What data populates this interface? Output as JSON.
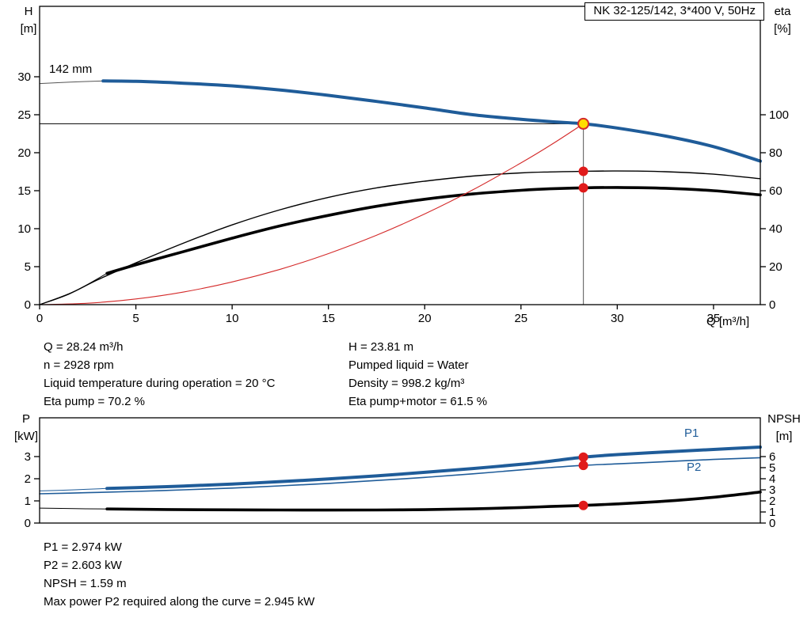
{
  "title_box": "NK 32-125/142, 3*400 V, 50Hz",
  "labels": {
    "h_axis": [
      "H",
      "[m]"
    ],
    "eta_axis": [
      "eta",
      "[%]"
    ],
    "q_axis": "Q [m³/h]",
    "p_axis": [
      "P",
      "[kW]"
    ],
    "npsh_axis": [
      "NPSH",
      "[m]"
    ],
    "impeller": "142 mm",
    "p1": "P1",
    "p2": "P2"
  },
  "info": {
    "left": [
      "Q = 28.24 m³/h",
      "n = 2928 rpm",
      "Liquid temperature during operation = 20 °C",
      "Eta pump = 70.2 %"
    ],
    "right": [
      "H = 23.81 m",
      "Pumped liquid = Water",
      "Density = 998.2 kg/m³",
      "Eta pump+motor = 61.5 %"
    ]
  },
  "results": [
    "P1 = 2.974 kW",
    "P2 = 2.603 kW",
    "NPSH = 1.59 m",
    "Max power P2 required along the curve = 2.945 kW"
  ],
  "colors": {
    "curve_blue": "#1f5c99",
    "curve_black": "#000000",
    "system_red": "#d42a2a",
    "duty_yellow": "#ffdd00",
    "marker_red": "#e01b1b"
  },
  "chart_data": [
    {
      "type": "line",
      "name": "hq-eta",
      "title": "NK 32-125/142, 3*400 V, 50Hz",
      "xlabel": "Q [m³/h]",
      "ylabel_left": "H [m]",
      "ylabel_right": "eta [%]",
      "xlim": [
        0,
        37.43
      ],
      "ylim_left": [
        0,
        39.27
      ],
      "ylim_right": [
        0,
        157.1
      ],
      "x_ticks": [
        0,
        5,
        10,
        15,
        20,
        25,
        30,
        35
      ],
      "y_ticks_left": [
        0,
        5,
        10,
        15,
        20,
        25,
        30
      ],
      "y_ticks_right": [
        0,
        20,
        40,
        60,
        80,
        100
      ],
      "duty_point": {
        "q": 28.24,
        "h": 23.81,
        "eta_pump": 70.2,
        "eta_pump_motor": 61.5,
        "impeller": "142 mm"
      },
      "series": [
        {
          "name": "head-142mm-leadin",
          "axis": "left",
          "color": "#555555",
          "width": 1,
          "points": [
            [
              0,
              29.1
            ],
            [
              1.6,
              29.3
            ],
            [
              3.3,
              29.45
            ]
          ]
        },
        {
          "name": "head-142mm",
          "axis": "left",
          "color": "#1f5c99",
          "width": 4,
          "points": [
            [
              3.3,
              29.45
            ],
            [
              5,
              29.4
            ],
            [
              7.5,
              29.15
            ],
            [
              10,
              28.8
            ],
            [
              12.5,
              28.25
            ],
            [
              15,
              27.55
            ],
            [
              17.5,
              26.75
            ],
            [
              20,
              25.9
            ],
            [
              22.5,
              25.0
            ],
            [
              25,
              24.4
            ],
            [
              26.5,
              24.1
            ],
            [
              28.24,
              23.81
            ],
            [
              30,
              23.25
            ],
            [
              32.5,
              22.2
            ],
            [
              35,
              20.8
            ],
            [
              37.43,
              18.9
            ]
          ]
        },
        {
          "name": "eta-pump",
          "axis": "right",
          "color": "#000000",
          "width": 1.4,
          "points": [
            [
              0,
              0
            ],
            [
              1.5,
              5.5
            ],
            [
              3,
              13
            ],
            [
              5,
              22
            ],
            [
              7.5,
              32.5
            ],
            [
              10,
              42
            ],
            [
              12.5,
              50
            ],
            [
              15,
              56.5
            ],
            [
              17.5,
              61.5
            ],
            [
              20,
              65
            ],
            [
              22.5,
              67.7
            ],
            [
              25,
              69.4
            ],
            [
              26.5,
              69.9
            ],
            [
              28.24,
              70.2
            ],
            [
              30,
              70.4
            ],
            [
              32.5,
              70
            ],
            [
              35,
              68.7
            ],
            [
              37.43,
              66.3
            ]
          ]
        },
        {
          "name": "eta-pump-motor-leadin",
          "axis": "right",
          "color": "#000000",
          "width": 1,
          "points": [
            [
              0,
              0
            ],
            [
              1.8,
              7
            ],
            [
              3.5,
              16.5
            ]
          ]
        },
        {
          "name": "eta-pump-motor",
          "axis": "right",
          "color": "#000000",
          "width": 3.6,
          "points": [
            [
              3.5,
              16.5
            ],
            [
              5,
              21
            ],
            [
              7.5,
              28
            ],
            [
              10,
              35
            ],
            [
              12.5,
              41.5
            ],
            [
              15,
              47
            ],
            [
              17.5,
              51.8
            ],
            [
              20,
              55.5
            ],
            [
              22.5,
              58.3
            ],
            [
              25,
              60.2
            ],
            [
              26.5,
              61
            ],
            [
              28.24,
              61.5
            ],
            [
              30,
              61.7
            ],
            [
              32.5,
              61.3
            ],
            [
              35,
              60
            ],
            [
              37.43,
              57.8
            ]
          ]
        },
        {
          "name": "system-curve",
          "axis": "left",
          "color": "#d42a2a",
          "width": 1.1,
          "points": [
            [
              0,
              0
            ],
            [
              2.5,
              0.19
            ],
            [
              5,
              0.75
            ],
            [
              7.5,
              1.68
            ],
            [
              10,
              2.99
            ],
            [
              12.5,
              4.66
            ],
            [
              15,
              6.72
            ],
            [
              17.5,
              9.14
            ],
            [
              20,
              11.94
            ],
            [
              22.5,
              15.11
            ],
            [
              25,
              18.66
            ],
            [
              26.6,
              21.1
            ],
            [
              28.24,
              23.81
            ]
          ]
        }
      ],
      "ref_lines": [
        {
          "orient": "h",
          "at": 23.81,
          "from": 0,
          "to": 28.24,
          "axis": "left",
          "color": "#000000",
          "width": 1
        },
        {
          "orient": "v",
          "at": 28.24,
          "from": 0,
          "to": 23.81,
          "axis": "left",
          "color": "#707070",
          "width": 1.2
        }
      ],
      "markers": [
        {
          "name": "eta-pump-point",
          "x": 28.24,
          "y": 70.2,
          "axis": "right",
          "fill": "#e01b1b",
          "stroke": "#e01b1b",
          "r": 5.5
        },
        {
          "name": "eta-pump-motor-point",
          "x": 28.24,
          "y": 61.5,
          "axis": "right",
          "fill": "#e01b1b",
          "stroke": "#e01b1b",
          "r": 5.5
        },
        {
          "name": "duty-point",
          "x": 28.24,
          "y": 23.81,
          "axis": "left",
          "fill": "#ffdd00",
          "stroke": "#d42a2a",
          "r": 6.5,
          "stroke_width": 2
        }
      ]
    },
    {
      "type": "line",
      "name": "power-npsh",
      "xlabel": "Q [m³/h]",
      "ylabel_left": "P [kW]",
      "ylabel_right": "NPSH [m]",
      "xlim": [
        0,
        37.43
      ],
      "ylim_left": [
        0,
        4.75
      ],
      "ylim_right": [
        0,
        9.5
      ],
      "x_ticks": [],
      "y_ticks_left": [
        0,
        1,
        2,
        3
      ],
      "y_ticks_right": [
        0,
        1,
        2,
        3,
        4,
        5,
        6
      ],
      "duty_point": {
        "q": 28.24,
        "p1": 2.974,
        "p2": 2.603,
        "npsh": 1.59
      },
      "series": [
        {
          "name": "p2",
          "axis": "left",
          "color": "#1f5c99",
          "width": 1.6,
          "points": [
            [
              0,
              1.32
            ],
            [
              2.5,
              1.37
            ],
            [
              5,
              1.43
            ],
            [
              7.5,
              1.5
            ],
            [
              10,
              1.58
            ],
            [
              12.5,
              1.68
            ],
            [
              15,
              1.79
            ],
            [
              17.5,
              1.92
            ],
            [
              20,
              2.06
            ],
            [
              22.5,
              2.22
            ],
            [
              25,
              2.4
            ],
            [
              26.5,
              2.5
            ],
            [
              28.24,
              2.603
            ],
            [
              30,
              2.67
            ],
            [
              32.5,
              2.77
            ],
            [
              35,
              2.87
            ],
            [
              37.43,
              2.95
            ]
          ]
        },
        {
          "name": "p1-leadin",
          "axis": "left",
          "color": "#1f5c99",
          "width": 1,
          "points": [
            [
              0,
              1.45
            ],
            [
              1.8,
              1.5
            ],
            [
              3.5,
              1.56
            ]
          ]
        },
        {
          "name": "p1",
          "axis": "left",
          "color": "#1f5c99",
          "width": 4,
          "points": [
            [
              3.5,
              1.56
            ],
            [
              5,
              1.6
            ],
            [
              7.5,
              1.67
            ],
            [
              10,
              1.76
            ],
            [
              12.5,
              1.87
            ],
            [
              15,
              1.99
            ],
            [
              17.5,
              2.13
            ],
            [
              20,
              2.29
            ],
            [
              22.5,
              2.46
            ],
            [
              25,
              2.65
            ],
            [
              26.5,
              2.79
            ],
            [
              28.24,
              2.974
            ],
            [
              30,
              3.09
            ],
            [
              32.5,
              3.21
            ],
            [
              35,
              3.32
            ],
            [
              37.43,
              3.43
            ]
          ]
        },
        {
          "name": "npsh-leadin",
          "axis": "right",
          "color": "#000000",
          "width": 1,
          "points": [
            [
              0,
              1.35
            ],
            [
              1.8,
              1.3
            ],
            [
              3.5,
              1.27
            ]
          ]
        },
        {
          "name": "npsh",
          "axis": "right",
          "color": "#000000",
          "width": 3.6,
          "points": [
            [
              3.5,
              1.27
            ],
            [
              5,
              1.24
            ],
            [
              7.5,
              1.21
            ],
            [
              10,
              1.19
            ],
            [
              12.5,
              1.18
            ],
            [
              15,
              1.17
            ],
            [
              17.5,
              1.18
            ],
            [
              20,
              1.21
            ],
            [
              22.5,
              1.28
            ],
            [
              25,
              1.4
            ],
            [
              26.5,
              1.49
            ],
            [
              28.24,
              1.59
            ],
            [
              30,
              1.73
            ],
            [
              32.5,
              1.98
            ],
            [
              35,
              2.33
            ],
            [
              37.43,
              2.8
            ]
          ]
        }
      ],
      "ref_lines": [],
      "markers": [
        {
          "name": "p1-point",
          "x": 28.24,
          "y": 2.974,
          "axis": "left",
          "fill": "#e01b1b",
          "stroke": "#e01b1b",
          "r": 5.5
        },
        {
          "name": "p2-point",
          "x": 28.24,
          "y": 2.603,
          "axis": "left",
          "fill": "#e01b1b",
          "stroke": "#e01b1b",
          "r": 5.5
        },
        {
          "name": "npsh-point",
          "x": 28.24,
          "y": 1.59,
          "axis": "right",
          "fill": "#e01b1b",
          "stroke": "#e01b1b",
          "r": 5.5
        }
      ]
    }
  ]
}
